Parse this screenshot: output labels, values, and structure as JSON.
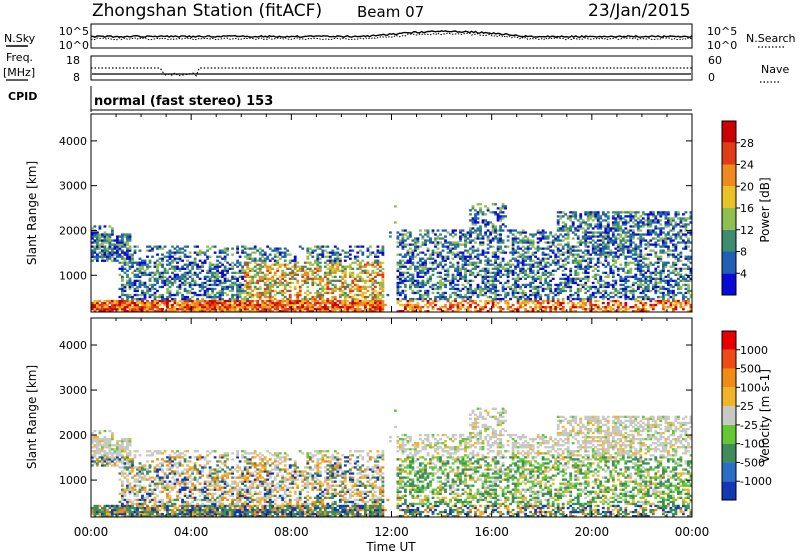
{
  "header": {
    "station": "Zhongshan Station (fitACF)",
    "beam": "Beam 07",
    "date": "23/Jan/2015"
  },
  "strip_labels": {
    "nsky": "N.Sky",
    "nsearch": "N.Search",
    "freq_line1": "Freq.",
    "freq_line2": "[MHz]",
    "nave": "Nave",
    "cpid": "CPID",
    "cpid_value": "normal (fast stereo) 153",
    "noise_ticks_left": [
      "10^5",
      "10^0"
    ],
    "noise_ticks_right": [
      "10^5",
      "10^0"
    ],
    "freq_ticks": [
      "18",
      "8"
    ],
    "nave_ticks": [
      "60",
      "0"
    ]
  },
  "chart_data": [
    {
      "type": "heatmap",
      "panel": "power",
      "ylabel": "Slant Range [km]",
      "xlabel": "",
      "xlim": [
        "00:00",
        "00:00"
      ],
      "ylim": [
        180,
        4600
      ],
      "yticks": [
        "1000",
        "2000",
        "3000",
        "4000"
      ],
      "colorbar": {
        "label": "Power [dB]",
        "ticks": [
          "4",
          "8",
          "12",
          "16",
          "20",
          "24",
          "28"
        ],
        "colors": [
          "#0a0ad8",
          "#1f5fb4",
          "#3e8c6e",
          "#8fbf4e",
          "#e9c228",
          "#f08a1e",
          "#e03c16",
          "#cc0000"
        ]
      },
      "echo_regions": [
        {
          "t_start": 0.0,
          "t_end": 1.5,
          "r_min": 1300,
          "r_max": 1800,
          "level": "mixed"
        },
        {
          "t_start": 0.0,
          "t_end": 11.5,
          "r_min": 200,
          "r_max": 400,
          "level": "high"
        },
        {
          "t_start": 1.0,
          "t_end": 11.5,
          "r_min": 500,
          "r_max": 1300,
          "level": "mixed"
        },
        {
          "t_start": 12.0,
          "t_end": 24.0,
          "r_min": 500,
          "r_max": 2200,
          "level": "mixed"
        },
        {
          "t_start": 18.5,
          "t_end": 24.0,
          "r_min": 1500,
          "r_max": 2400,
          "level": "mixed"
        }
      ]
    },
    {
      "type": "heatmap",
      "panel": "velocity",
      "ylabel": "Slant Range [km]",
      "xlabel": "Time UT",
      "xlim": [
        "00:00",
        "00:00"
      ],
      "ylim": [
        180,
        4600
      ],
      "yticks": [
        "1000",
        "2000",
        "3000",
        "4000"
      ],
      "xticks": [
        "00:00",
        "04:00",
        "08:00",
        "12:00",
        "16:00",
        "20:00",
        "00:00"
      ],
      "colorbar": {
        "label": "Velocity [m s-1]",
        "ticks": [
          "1000",
          "500",
          "100",
          "25",
          "-25",
          "-100",
          "-500",
          "-1000"
        ],
        "colors": [
          "#1438b4",
          "#2a6ec8",
          "#3e8c5a",
          "#64c832",
          "#c8c8c4",
          "#f0b428",
          "#f08c14",
          "#f04a14",
          "#e60000"
        ]
      }
    }
  ]
}
